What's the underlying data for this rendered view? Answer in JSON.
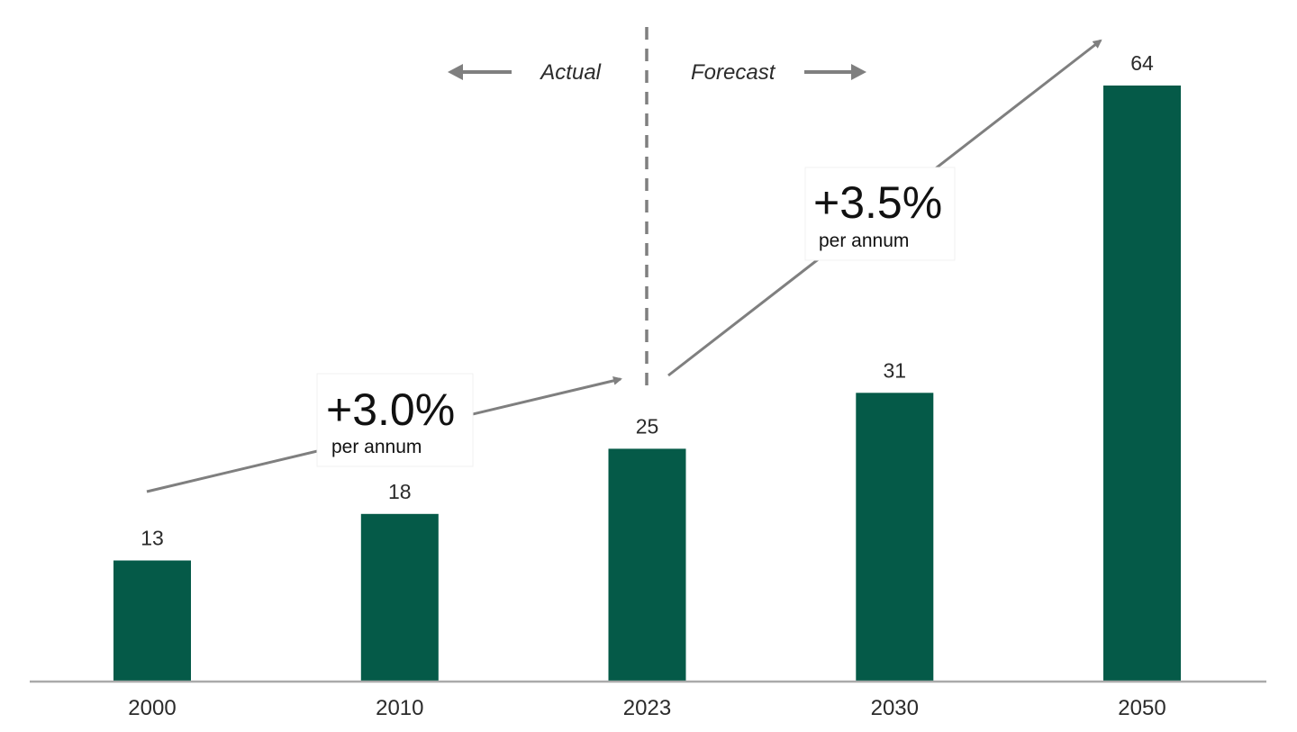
{
  "chart_data": {
    "type": "bar",
    "categories": [
      "2000",
      "2010",
      "2023",
      "2030",
      "2050"
    ],
    "values": [
      13,
      18,
      25,
      31,
      64
    ],
    "value_labels": [
      "13",
      "18",
      "25",
      "31",
      "64"
    ],
    "title": "",
    "xlabel": "",
    "ylabel": "",
    "ylim": [
      0,
      64
    ],
    "grid": false,
    "bar_color": "#055A48",
    "axis_color": "#AAAAAA",
    "divider": {
      "after_category": "2023",
      "left_label": "Actual",
      "right_label": "Forecast"
    },
    "annotations": [
      {
        "from": "2000",
        "to": "2023",
        "rate": "+3.0%",
        "unit": "per annum"
      },
      {
        "from": "2023",
        "to": "2050",
        "rate": "+3.5%",
        "unit": "per annum"
      }
    ]
  }
}
